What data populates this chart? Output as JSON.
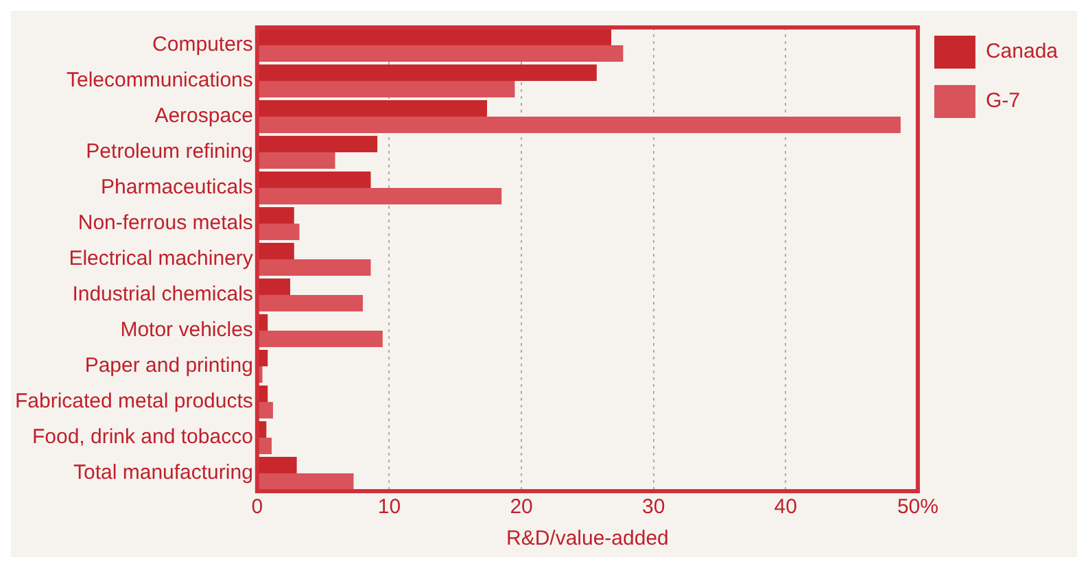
{
  "chart_data": {
    "type": "bar",
    "orientation": "horizontal",
    "xlabel": "R&D/value-added",
    "categories": [
      "Computers",
      "Telecommunications",
      "Aerospace",
      "Petroleum refining",
      "Pharmaceuticals",
      "Non-ferrous metals",
      "Electrical machinery",
      "Industrial chemicals",
      "Motor vehicles",
      "Paper and printing",
      "Fabricated metal products",
      "Food, drink and tobacco",
      "Total manufacturing"
    ],
    "series": [
      {
        "name": "Canada",
        "color": "#c8282d",
        "values": [
          26.8,
          25.7,
          17.4,
          9.1,
          8.6,
          2.8,
          2.8,
          2.5,
          0.8,
          0.8,
          0.8,
          0.7,
          3.0
        ]
      },
      {
        "name": "G-7",
        "color": "#d9535a",
        "values": [
          27.7,
          19.5,
          48.7,
          5.9,
          18.5,
          3.2,
          8.6,
          8.0,
          9.5,
          0.4,
          1.2,
          1.1,
          7.3
        ]
      }
    ],
    "xlim": [
      0,
      50
    ],
    "xticks": [
      0,
      10,
      20,
      30,
      40,
      {
        "value": 50,
        "label": "50%"
      }
    ],
    "grid": "x",
    "legend": "top right"
  }
}
